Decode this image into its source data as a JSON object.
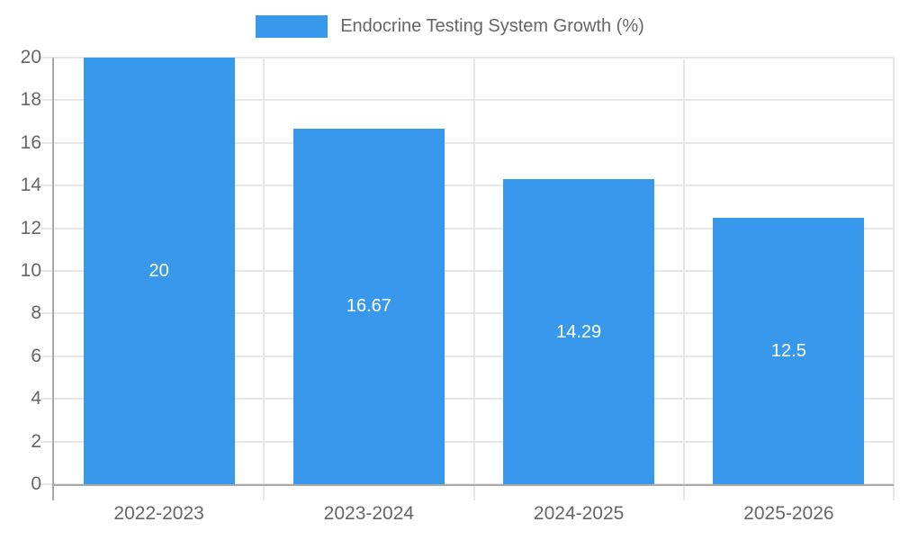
{
  "chart_data": {
    "type": "bar",
    "legend_label": "Endocrine Testing System Growth (%)",
    "categories": [
      "2022-2023",
      "2023-2024",
      "2024-2025",
      "2025-2026"
    ],
    "values": [
      20,
      16.67,
      14.29,
      12.5
    ],
    "value_labels": [
      "20",
      "16.67",
      "14.29",
      "12.5"
    ],
    "yticks": [
      0,
      2,
      4,
      6,
      8,
      10,
      12,
      14,
      16,
      18,
      20
    ],
    "ylim": [
      0,
      20
    ],
    "xlabel": "",
    "ylabel": "",
    "legend_position": "top",
    "grid": "on",
    "bar_color": "#3899ec",
    "grid_color": "#e7e7e7",
    "axis_line_color": "#a9a9a9",
    "axis_text_color": "#666666",
    "value_label_color": "#ffffff",
    "background_color": "#ffffff"
  }
}
